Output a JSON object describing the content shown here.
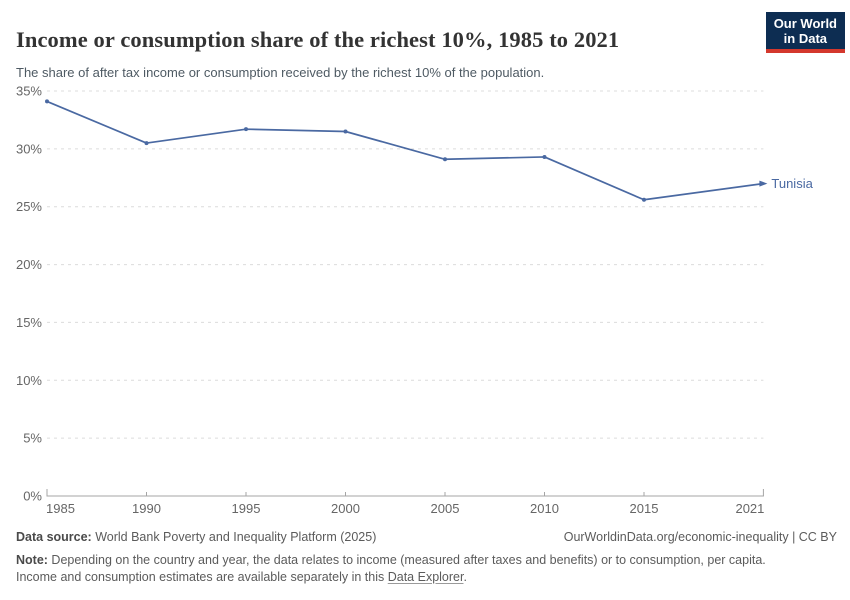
{
  "header": {
    "title": "Income or consumption share of the richest 10%, 1985 to 2021",
    "subtitle": "The share of after tax income or consumption received by the richest 10% of the population.",
    "logo": {
      "line1": "Our World",
      "line2": "in Data"
    }
  },
  "chart_data": {
    "type": "line",
    "title": "Income or consumption share of the richest 10%, 1985 to 2021",
    "xlabel": "",
    "ylabel": "",
    "xlim": [
      1985,
      2021
    ],
    "ylim": [
      0,
      35
    ],
    "x_ticks": [
      1985,
      1990,
      1995,
      2000,
      2005,
      2010,
      2015,
      2021
    ],
    "y_ticks": [
      0,
      5,
      10,
      15,
      20,
      25,
      30,
      35
    ],
    "y_tick_suffix": "%",
    "grid": "horizontal-dashed",
    "legend_position": "end-of-line-label",
    "series": [
      {
        "name": "Tunisia",
        "x": [
          1985,
          1990,
          1995,
          2000,
          2005,
          2010,
          2015,
          2021
        ],
        "values": [
          34.1,
          30.5,
          31.7,
          31.5,
          29.1,
          29.3,
          25.6,
          27.0
        ],
        "color": "#4a69a2"
      }
    ]
  },
  "footer": {
    "source_label": "Data source:",
    "source_text": " World Bank Poverty and Inequality Platform (2025)",
    "credit": "OurWorldinData.org/economic-inequality | CC BY",
    "note_label": "Note:",
    "note_line1": " Depending on the country and year, the data relates to income (measured after taxes and benefits) or to consumption, per capita.",
    "note_line2_before": "Income and consumption estimates are available separately in this ",
    "note_link": "Data Explorer",
    "note_line2_after": "."
  },
  "colors": {
    "line": "#4a69a2",
    "grid": "#dcdcdc",
    "axis": "#a5a5a5",
    "tick_label": "#666666",
    "logo_bg": "#0d2d52",
    "logo_red": "#d4382d"
  }
}
